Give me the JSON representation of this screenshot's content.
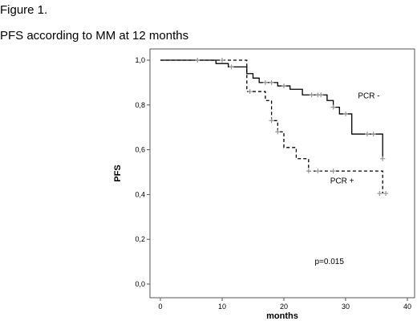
{
  "figure_label": "Figure 1.",
  "chart_data": {
    "type": "line",
    "title": "PFS according to MM at 12 months",
    "xlabel": "months",
    "ylabel": "PFS",
    "xlim": [
      0,
      40
    ],
    "ylim": [
      0,
      1
    ],
    "x_ticks": [
      "0",
      "10",
      "20",
      "30",
      "40"
    ],
    "y_ticks": [
      "0,0",
      "0,2",
      "0,4",
      "0,6",
      "0,8",
      "1,0"
    ],
    "grid": false,
    "series": [
      {
        "name": "PCR -",
        "style": "solid",
        "color": "#000000",
        "step_x": [
          0,
          7,
          9,
          11,
          14,
          15,
          16,
          19,
          21,
          23,
          27,
          28,
          29,
          31,
          36,
          36
        ],
        "step_y": [
          1.0,
          1.0,
          0.985,
          0.97,
          0.94,
          0.92,
          0.9,
          0.885,
          0.87,
          0.845,
          0.82,
          0.79,
          0.76,
          0.67,
          0.67,
          0.56
        ],
        "censor_x": [
          11.5,
          17,
          18,
          20,
          24.5,
          25.5,
          26,
          28,
          30,
          33.5,
          34.5,
          36
        ],
        "censor_y": [
          0.97,
          0.9,
          0.9,
          0.885,
          0.845,
          0.845,
          0.845,
          0.79,
          0.76,
          0.67,
          0.67,
          0.56
        ]
      },
      {
        "name": "PCR +",
        "style": "dashed",
        "color": "#000000",
        "step_x": [
          0,
          13,
          14,
          17,
          18,
          19,
          20,
          22,
          24,
          35,
          36
        ],
        "step_y": [
          1.0,
          1.0,
          0.86,
          0.82,
          0.73,
          0.68,
          0.61,
          0.56,
          0.505,
          0.505,
          0.405
        ],
        "censor_x": [
          6,
          10,
          14.5,
          18,
          19,
          24,
          25.5,
          28,
          35.5,
          36.5
        ],
        "censor_y": [
          1.0,
          1.0,
          0.86,
          0.73,
          0.68,
          0.505,
          0.505,
          0.505,
          0.405,
          0.405
        ]
      }
    ],
    "annotations": [
      {
        "text": "PCR -",
        "x": 32,
        "y": 0.83
      },
      {
        "text": "PCR +",
        "x": 27.5,
        "y": 0.45
      },
      {
        "text": "p=0.015",
        "x": 25,
        "y": 0.09
      }
    ]
  }
}
